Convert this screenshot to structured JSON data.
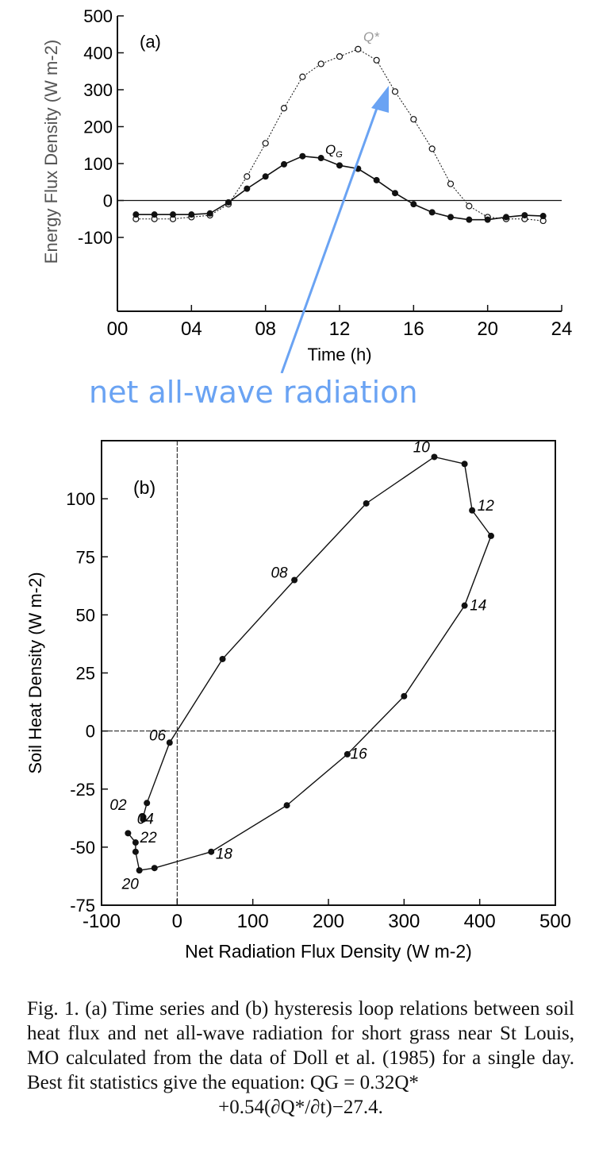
{
  "colors": {
    "ink": "#111111",
    "arrow": "#6aa3f3",
    "annotation": "#6aa3f3"
  },
  "chart_data": [
    {
      "type": "line",
      "panel_label": "(a)",
      "xlabel": "Time (h)",
      "ylabel": "Energy Flux Density (W m-2)",
      "xlim": [
        0,
        24
      ],
      "ylim": [
        -300,
        500
      ],
      "x_ticks": [
        "00",
        "04",
        "08",
        "12",
        "16",
        "20",
        "24"
      ],
      "y_ticks": [
        "500",
        "400",
        "300",
        "200",
        "100",
        "0",
        "-100"
      ],
      "x_tick_values": [
        0,
        4,
        8,
        12,
        16,
        20,
        24
      ],
      "y_tick_values": [
        500,
        400,
        300,
        200,
        100,
        0,
        -100
      ],
      "zero_line": true,
      "series": [
        {
          "name": "Q*",
          "marker": "open-circle",
          "style": "dotted",
          "x": [
            1,
            2,
            3,
            4,
            5,
            6,
            7,
            8,
            9,
            10,
            11,
            12,
            13,
            14,
            15,
            16,
            17,
            18,
            19,
            20,
            21,
            22,
            23
          ],
          "y": [
            -50,
            -50,
            -50,
            -45,
            -40,
            -10,
            65,
            155,
            250,
            335,
            370,
            390,
            410,
            380,
            295,
            220,
            140,
            45,
            -15,
            -45,
            -50,
            -50,
            -55
          ]
        },
        {
          "name": "QG",
          "marker": "filled-circle",
          "style": "solid",
          "x": [
            1,
            2,
            3,
            4,
            5,
            6,
            7,
            8,
            9,
            10,
            11,
            12,
            13,
            14,
            15,
            16,
            17,
            18,
            19,
            20,
            21,
            22,
            23
          ],
          "y": [
            -38,
            -38,
            -38,
            -38,
            -35,
            -5,
            32,
            65,
            98,
            120,
            115,
            95,
            86,
            55,
            20,
            -10,
            -32,
            -45,
            -52,
            -52,
            -45,
            -40,
            -42
          ]
        }
      ],
      "series_labels": {
        "qstar": "Q*",
        "qg": "Q",
        "qg_sub": "G"
      }
    },
    {
      "type": "scatter",
      "panel_label": "(b)",
      "xlabel": "Net Radiation Flux Density (W m-2)",
      "ylabel": "Soil Heat Density (W m-2)",
      "xlim": [
        -100,
        500
      ],
      "ylim": [
        -75,
        125
      ],
      "x_ticks": [
        "-100",
        "0",
        "100",
        "200",
        "300",
        "400",
        "500"
      ],
      "y_ticks": [
        "100",
        "75",
        "50",
        "25",
        "0",
        "-25",
        "-50",
        "-75"
      ],
      "x_tick_values": [
        -100,
        0,
        100,
        200,
        300,
        400,
        500
      ],
      "y_tick_values": [
        100,
        75,
        50,
        25,
        0,
        -25,
        -50,
        -75
      ],
      "zero_lines": true,
      "points": {
        "x": [
          -45,
          -45,
          -45,
          -45,
          -40,
          -10,
          60,
          155,
          250,
          340,
          380,
          390,
          415,
          380,
          300,
          225,
          145,
          45,
          -30,
          -50,
          -55,
          -55,
          -65
        ],
        "y": [
          -37,
          -38,
          -38,
          -37,
          -31,
          -5,
          31,
          65,
          98,
          118,
          115,
          95,
          84,
          54,
          15,
          -10,
          -32,
          -52,
          -59,
          -60,
          -52,
          -48,
          -44
        ]
      },
      "hour_labels": [
        {
          "text": "02",
          "x": -78,
          "y": -34
        },
        {
          "text": "04",
          "x": -42,
          "y": -40
        },
        {
          "text": "06",
          "x": -26,
          "y": -4
        },
        {
          "text": "08",
          "x": 135,
          "y": 66
        },
        {
          "text": "10",
          "x": 323,
          "y": 120
        },
        {
          "text": "12",
          "x": 408,
          "y": 95
        },
        {
          "text": "14",
          "x": 398,
          "y": 52
        },
        {
          "text": "16",
          "x": 240,
          "y": -12
        },
        {
          "text": "18",
          "x": 62,
          "y": -55
        },
        {
          "text": "20",
          "x": -62,
          "y": -68
        },
        {
          "text": "22",
          "x": -38,
          "y": -48
        }
      ]
    }
  ],
  "annotation": {
    "text": "net all-wave radiation"
  },
  "caption": {
    "body": "Fig. 1. (a) Time series and (b) hysteresis loop relations between soil heat flux and net all-wave radiation for short grass near St Louis, MO calculated from the data of Doll et al. (1985) for a single day. Best fit statistics give the equation: QG = 0.32Q*",
    "equation": "+0.54(∂Q*/∂t)−27.4."
  }
}
